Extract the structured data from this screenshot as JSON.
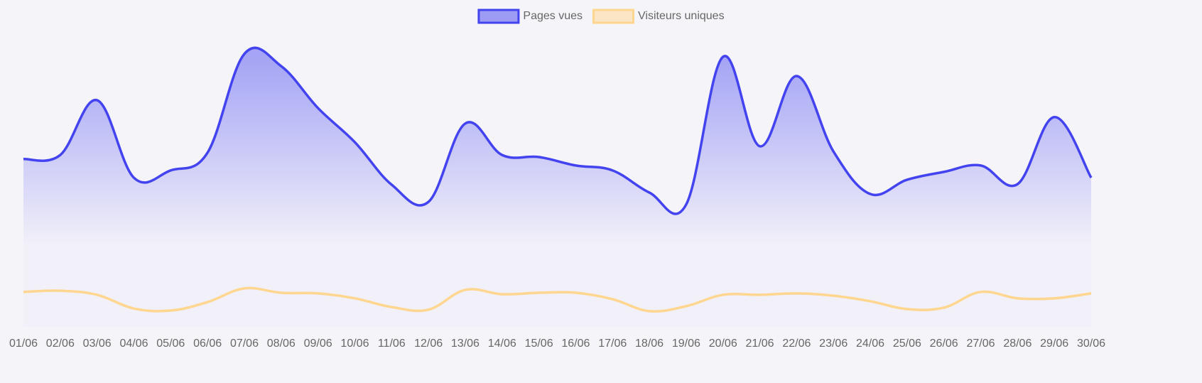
{
  "chart_data": {
    "type": "line",
    "categories": [
      "01/06",
      "02/06",
      "03/06",
      "04/06",
      "05/06",
      "06/06",
      "07/06",
      "08/06",
      "09/06",
      "10/06",
      "11/06",
      "12/06",
      "13/06",
      "14/06",
      "15/06",
      "16/06",
      "17/06",
      "18/06",
      "19/06",
      "20/06",
      "21/06",
      "22/06",
      "23/06",
      "24/06",
      "25/06",
      "26/06",
      "27/06",
      "28/06",
      "29/06",
      "30/06"
    ],
    "series": [
      {
        "name": "Pages vues",
        "color": "#4343f0",
        "fill": true,
        "values": [
          576,
          590,
          778,
          512,
          537,
          598,
          937,
          895,
          751,
          634,
          488,
          429,
          698,
          590,
          583,
          554,
          537,
          461,
          420,
          927,
          620,
          861,
          602,
          456,
          505,
          532,
          554,
          490,
          720,
          512
        ]
      },
      {
        "name": "Visiteurs uniques",
        "color": "#ffd68f",
        "fill": false,
        "values": [
          120,
          124,
          110,
          63,
          56,
          85,
          132,
          117,
          115,
          98,
          68,
          59,
          127,
          112,
          117,
          117,
          95,
          54,
          71,
          110,
          110,
          115,
          107,
          88,
          61,
          66,
          120,
          98,
          98,
          115
        ]
      }
    ],
    "ylim": [
      0,
      1000
    ],
    "legend": "top",
    "grid": false
  }
}
